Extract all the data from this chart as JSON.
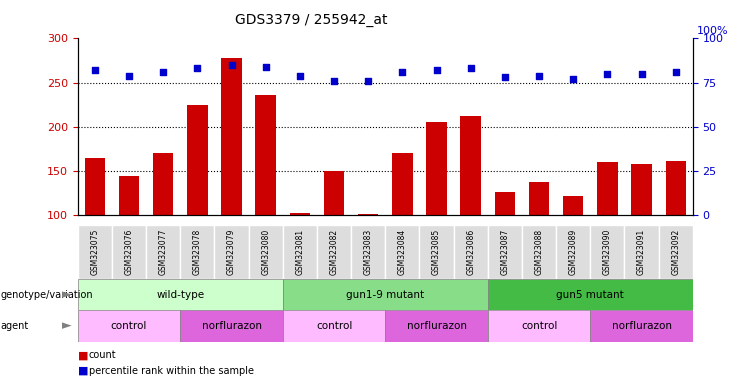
{
  "title": "GDS3379 / 255942_at",
  "samples": [
    "GSM323075",
    "GSM323076",
    "GSM323077",
    "GSM323078",
    "GSM323079",
    "GSM323080",
    "GSM323081",
    "GSM323082",
    "GSM323083",
    "GSM323084",
    "GSM323085",
    "GSM323086",
    "GSM323087",
    "GSM323088",
    "GSM323089",
    "GSM323090",
    "GSM323091",
    "GSM323092"
  ],
  "counts": [
    165,
    145,
    170,
    225,
    278,
    236,
    103,
    150,
    102,
    170,
    205,
    212,
    126,
    138,
    122,
    160,
    158,
    162
  ],
  "percentiles": [
    82,
    79,
    81,
    83,
    85,
    84,
    79,
    76,
    76,
    81,
    82,
    83,
    78,
    79,
    77,
    80,
    80,
    81
  ],
  "bar_color": "#cc0000",
  "dot_color": "#0000cc",
  "ylim_left": [
    100,
    300
  ],
  "ylim_right": [
    0,
    100
  ],
  "yticks_left": [
    100,
    150,
    200,
    250,
    300
  ],
  "yticks_right": [
    0,
    25,
    50,
    75,
    100
  ],
  "grid_values": [
    150,
    200,
    250
  ],
  "genotype_groups": [
    {
      "label": "wild-type",
      "start": 0,
      "end": 6,
      "color": "#ccffcc"
    },
    {
      "label": "gun1-9 mutant",
      "start": 6,
      "end": 12,
      "color": "#88dd88"
    },
    {
      "label": "gun5 mutant",
      "start": 12,
      "end": 18,
      "color": "#44bb44"
    }
  ],
  "agent_groups": [
    {
      "label": "control",
      "start": 0,
      "end": 3,
      "color": "#ffbbff"
    },
    {
      "label": "norflurazon",
      "start": 3,
      "end": 6,
      "color": "#dd66dd"
    },
    {
      "label": "control",
      "start": 6,
      "end": 9,
      "color": "#ffbbff"
    },
    {
      "label": "norflurazon",
      "start": 9,
      "end": 12,
      "color": "#dd66dd"
    },
    {
      "label": "control",
      "start": 12,
      "end": 15,
      "color": "#ffbbff"
    },
    {
      "label": "norflurazon",
      "start": 15,
      "end": 18,
      "color": "#dd66dd"
    }
  ],
  "legend_count_color": "#cc0000",
  "legend_dot_color": "#0000cc"
}
